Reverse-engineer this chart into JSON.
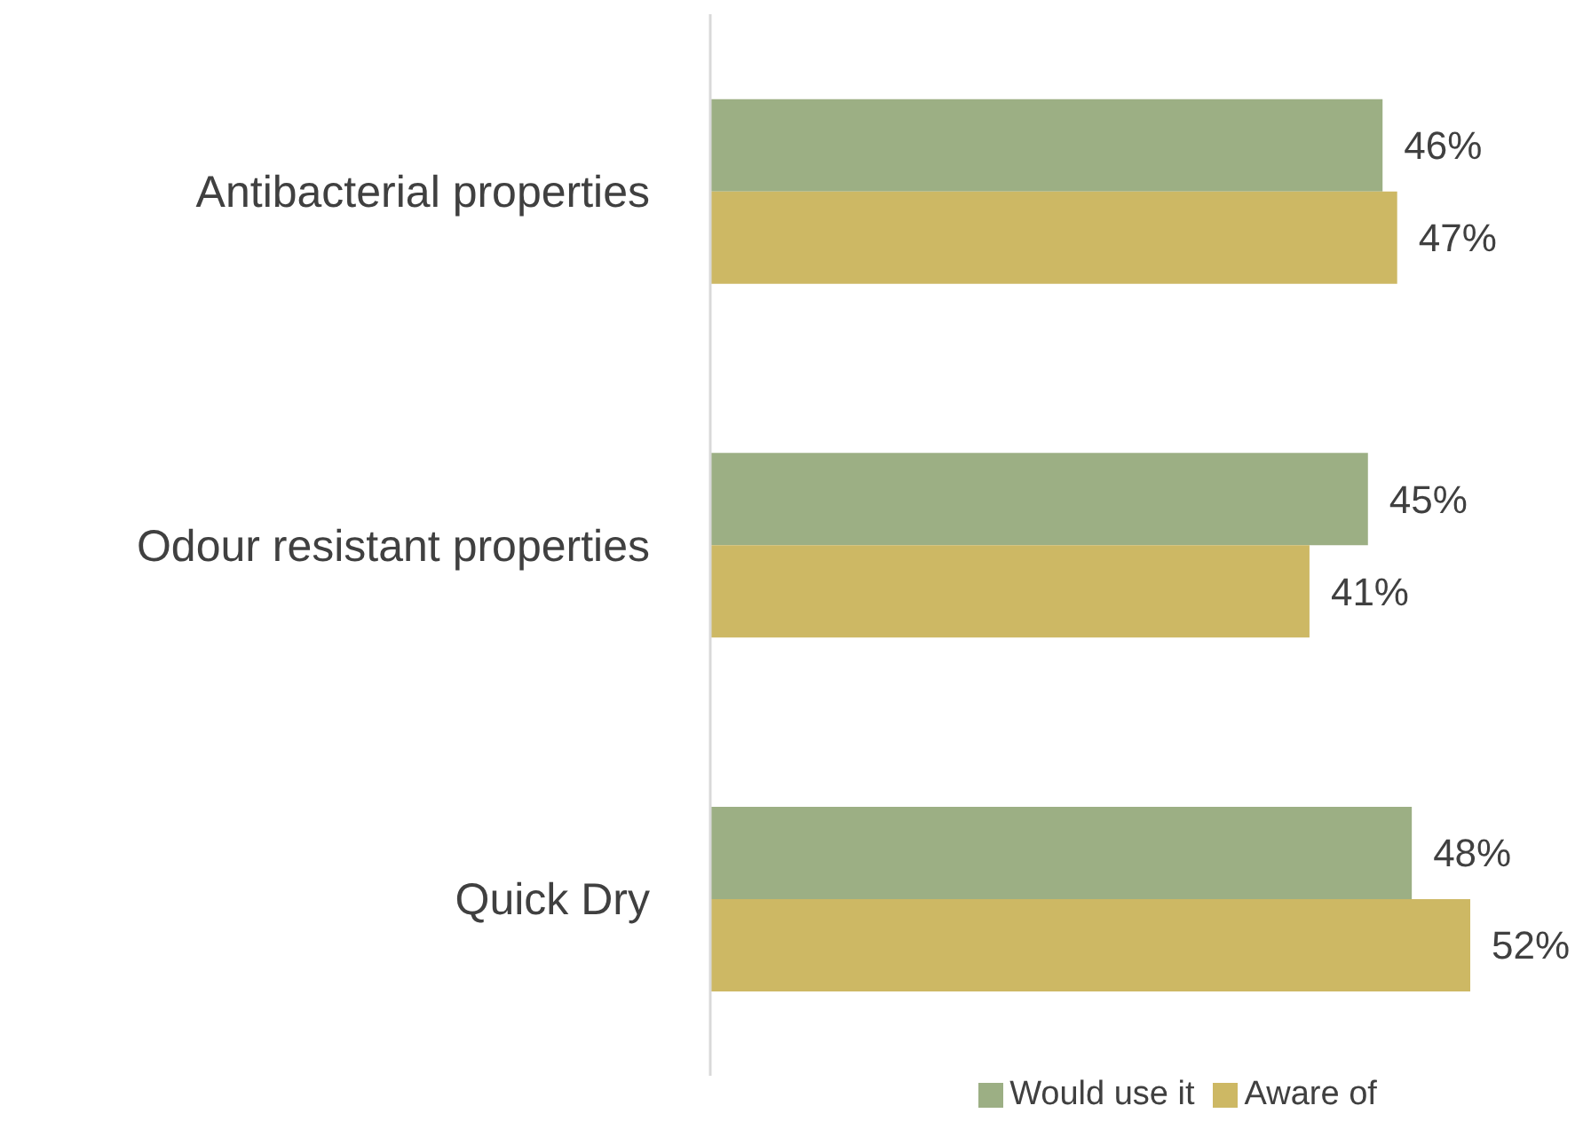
{
  "chart_data": {
    "type": "bar",
    "orientation": "horizontal",
    "categories": [
      "Antibacterial properties",
      "Odour resistant properties",
      "Quick Dry"
    ],
    "series": [
      {
        "name": "Would use it",
        "color": "#9caf84",
        "values": [
          46,
          45,
          48
        ],
        "value_labels": [
          "46%",
          "45%",
          "48%"
        ]
      },
      {
        "name": "Aware of",
        "color": "#cdb864",
        "values": [
          47,
          41,
          52
        ],
        "value_labels": [
          "47%",
          "41%",
          "52%"
        ]
      }
    ],
    "legend": "bottom"
  }
}
